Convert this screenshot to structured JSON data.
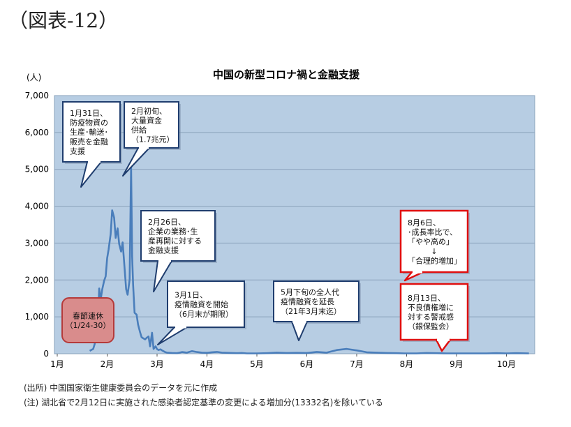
{
  "figure_label": "（図表-12）",
  "notes": {
    "source": "(出所) 中国国家衛生健康委員会のデータを元に作成",
    "note": "(注) 湖北省で2月12日に実施された感染者認定基準の変更による増加分(13332名)を除いている"
  },
  "chart_data": {
    "type": "line",
    "title": "中国の新型コロナ禍と金融支援",
    "ylabel": "(人)",
    "xlabel": "",
    "ylim": [
      0,
      7000
    ],
    "xlim": [
      0,
      9.6
    ],
    "yticks": [
      "0",
      "1,000",
      "2,000",
      "3,000",
      "4,000",
      "5,000",
      "6,000",
      "7,000"
    ],
    "ytick_values": [
      0,
      1000,
      2000,
      3000,
      4000,
      5000,
      6000,
      7000
    ],
    "xticks": [
      "1月",
      "2月",
      "3月",
      "4月",
      "5月",
      "6月",
      "7月",
      "8月",
      "9月",
      "10月"
    ],
    "xtick_values": [
      0,
      1,
      2,
      3,
      4,
      5,
      6,
      7,
      8,
      9
    ],
    "grid": true,
    "plot_background": "#b7cde3",
    "line_color": "#4a7ebb",
    "series": [
      {
        "name": "",
        "x": [
          0.65,
          0.68,
          0.72,
          0.75,
          0.78,
          0.81,
          0.84,
          0.87,
          0.9,
          0.94,
          0.97,
          1.0,
          1.03,
          1.07,
          1.1,
          1.14,
          1.17,
          1.21,
          1.24,
          1.28,
          1.31,
          1.34,
          1.38,
          1.41,
          1.45,
          1.48,
          1.5,
          1.52,
          1.55,
          1.59,
          1.62,
          1.66,
          1.69,
          1.72,
          1.76,
          1.79,
          1.83,
          1.86,
          1.9,
          1.93,
          1.97,
          2.0,
          2.03,
          2.07,
          2.1,
          2.14,
          2.17,
          2.2,
          2.3,
          2.4,
          2.5,
          2.6,
          2.7,
          2.8,
          2.9,
          3.0,
          3.1,
          3.2,
          3.3,
          3.4,
          3.5,
          3.6,
          3.7,
          3.8,
          3.9,
          4.0,
          4.2,
          4.4,
          4.6,
          4.8,
          5.0,
          5.2,
          5.4,
          5.6,
          5.8,
          6.0,
          6.2,
          6.4,
          6.6,
          6.8,
          6.95,
          7.0,
          7.05,
          7.1,
          7.2,
          7.4,
          7.6,
          7.8,
          8.0,
          8.2,
          8.4,
          8.6,
          8.8,
          9.0,
          9.2,
          9.45
        ],
        "values": [
          80,
          100,
          130,
          260,
          480,
          690,
          1770,
          1460,
          1740,
          1980,
          2100,
          2590,
          2830,
          3240,
          3890,
          3690,
          3140,
          3400,
          2980,
          2770,
          3020,
          2490,
          1750,
          1600,
          2010,
          5090,
          2640,
          1870,
          1110,
          1060,
          790,
          580,
          450,
          420,
          390,
          430,
          470,
          200,
          570,
          130,
          200,
          125,
          100,
          120,
          90,
          60,
          40,
          30,
          20,
          15,
          45,
          30,
          70,
          45,
          30,
          25,
          40,
          50,
          30,
          25,
          20,
          15,
          20,
          10,
          10,
          10,
          15,
          30,
          20,
          25,
          20,
          50,
          30,
          100,
          130,
          90,
          40,
          30,
          20,
          15,
          10,
          10,
          10,
          10,
          10,
          20,
          15,
          10,
          10,
          10,
          10,
          10,
          15,
          10,
          15,
          10
        ]
      }
    ],
    "annotations": [
      {
        "id": "jan31",
        "lines": [
          "1月31日、",
          "防疫物資の",
          "生産･輸送･",
          "販売を金融",
          "支援"
        ],
        "style": "normal"
      },
      {
        "id": "feb_early",
        "lines": [
          "2月初旬、",
          "大量資金",
          "供給",
          "（1.7兆元）"
        ],
        "style": "normal"
      },
      {
        "id": "feb26",
        "lines": [
          "2月26日、",
          "企業の業務･生",
          "産再開に対する",
          "金融支援"
        ],
        "style": "normal"
      },
      {
        "id": "mar1",
        "lines": [
          "3月1日、",
          "疫情融資を開始",
          "（6月末が期限）"
        ],
        "style": "normal"
      },
      {
        "id": "may_end",
        "lines": [
          "5月下旬の全人代",
          "疫情融資を延長",
          "（21年3月末迄）"
        ],
        "style": "normal"
      },
      {
        "id": "aug6",
        "lines": [
          "8月6日、",
          "･成長率比で、",
          "「やや高め」",
          "↓",
          "「合理的増加」"
        ],
        "style": "red"
      },
      {
        "id": "aug13",
        "lines": [
          "8月13日、",
          "不良債権増に",
          "対する警戒感",
          "（銀保監会）"
        ],
        "style": "red"
      },
      {
        "id": "spring",
        "lines": [
          "春節連休",
          "（1/24-30）"
        ],
        "style": "holiday"
      }
    ]
  }
}
